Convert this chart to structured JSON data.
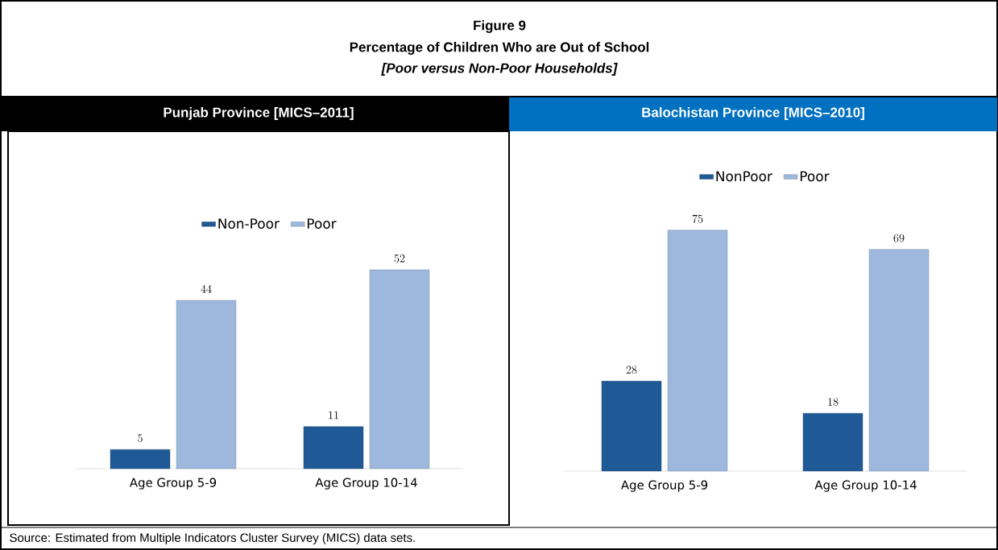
{
  "chart_data": [
    {
      "type": "bar",
      "title": "Punjab Province  [MICS–2011]",
      "annotations": [
        "Figure 9",
        "Percentage of Children Who are Out of School",
        "[Poor versus Non-Poor Households]",
        "Source: Estimated from Multiple Indicators Cluster Survey (MICS) data sets."
      ],
      "categories": [
        "Age Group 5-9",
        "Age Group 10-14"
      ],
      "series": [
        {
          "name": "Non-Poor",
          "color": "#1f5a96",
          "values": [
            5,
            11
          ]
        },
        {
          "name": "Poor",
          "color": "#9db8dc",
          "values": [
            44,
            52
          ]
        }
      ],
      "data_labels": true,
      "legend": "top"
    },
    {
      "type": "bar",
      "title": "Balochistan Province [MICS–2010]",
      "categories": [
        "Age Group 5-9",
        "Age Group 10-14"
      ],
      "series": [
        {
          "name": "NonPoor",
          "color": "#1f5a96",
          "values": [
            28,
            18
          ]
        },
        {
          "name": "Poor",
          "color": "#9db8dc",
          "values": [
            75,
            69
          ]
        }
      ],
      "data_labels": true,
      "legend": "top"
    }
  ]
}
